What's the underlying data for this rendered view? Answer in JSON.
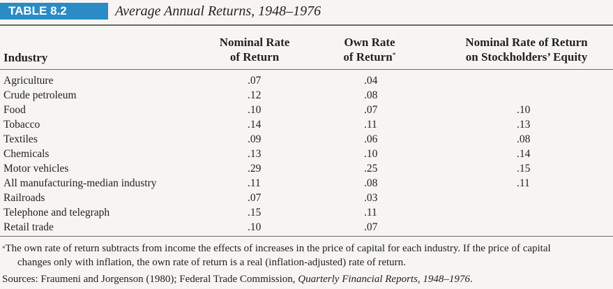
{
  "table": {
    "label": "TABLE 8.2",
    "title": "Average Annual Returns, 1948–1976"
  },
  "headers": {
    "industry": "Industry",
    "nominal_line1": "Nominal Rate",
    "nominal_line2": "of Return",
    "own_line1": "Own Rate",
    "own_line2": "of Return",
    "own_marker": "*",
    "equity_line1": "Nominal Rate of Return",
    "equity_line2": "on Stockholders’ Equity"
  },
  "rows": [
    {
      "industry": "Agriculture",
      "nominal": ".07",
      "own": ".04",
      "equity": ""
    },
    {
      "industry": "Crude petroleum",
      "nominal": ".12",
      "own": ".08",
      "equity": ""
    },
    {
      "industry": "Food",
      "nominal": ".10",
      "own": ".07",
      "equity": ".10"
    },
    {
      "industry": "Tobacco",
      "nominal": ".14",
      "own": ".11",
      "equity": ".13"
    },
    {
      "industry": "Textiles",
      "nominal": ".09",
      "own": ".06",
      "equity": ".08"
    },
    {
      "industry": "Chemicals",
      "nominal": ".13",
      "own": ".10",
      "equity": ".14"
    },
    {
      "industry": "Motor vehicles",
      "nominal": ".29",
      "own": ".25",
      "equity": ".15"
    },
    {
      "industry": "All manufacturing-median industry",
      "nominal": ".11",
      "own": ".08",
      "equity": ".11"
    },
    {
      "industry": "Railroads",
      "nominal": ".07",
      "own": ".03",
      "equity": ""
    },
    {
      "industry": "Telephone and telegraph",
      "nominal": ".15",
      "own": ".11",
      "equity": ""
    },
    {
      "industry": "Retail trade",
      "nominal": ".10",
      "own": ".07",
      "equity": ""
    }
  ],
  "footnote": {
    "marker": "*",
    "line1": "The own rate of return subtracts from income the effects of increases in the price of capital for each industry. If the price of capital",
    "line2": "changes only with inflation, the own rate of return is a real (inflation-adjusted) rate of return."
  },
  "sources": {
    "prefix": "Sources: Fraumeni and Jorgenson (1980); Federal Trade Commission, ",
    "italic": "Quarterly Financial Reports, 1948–1976",
    "suffix": "."
  }
}
